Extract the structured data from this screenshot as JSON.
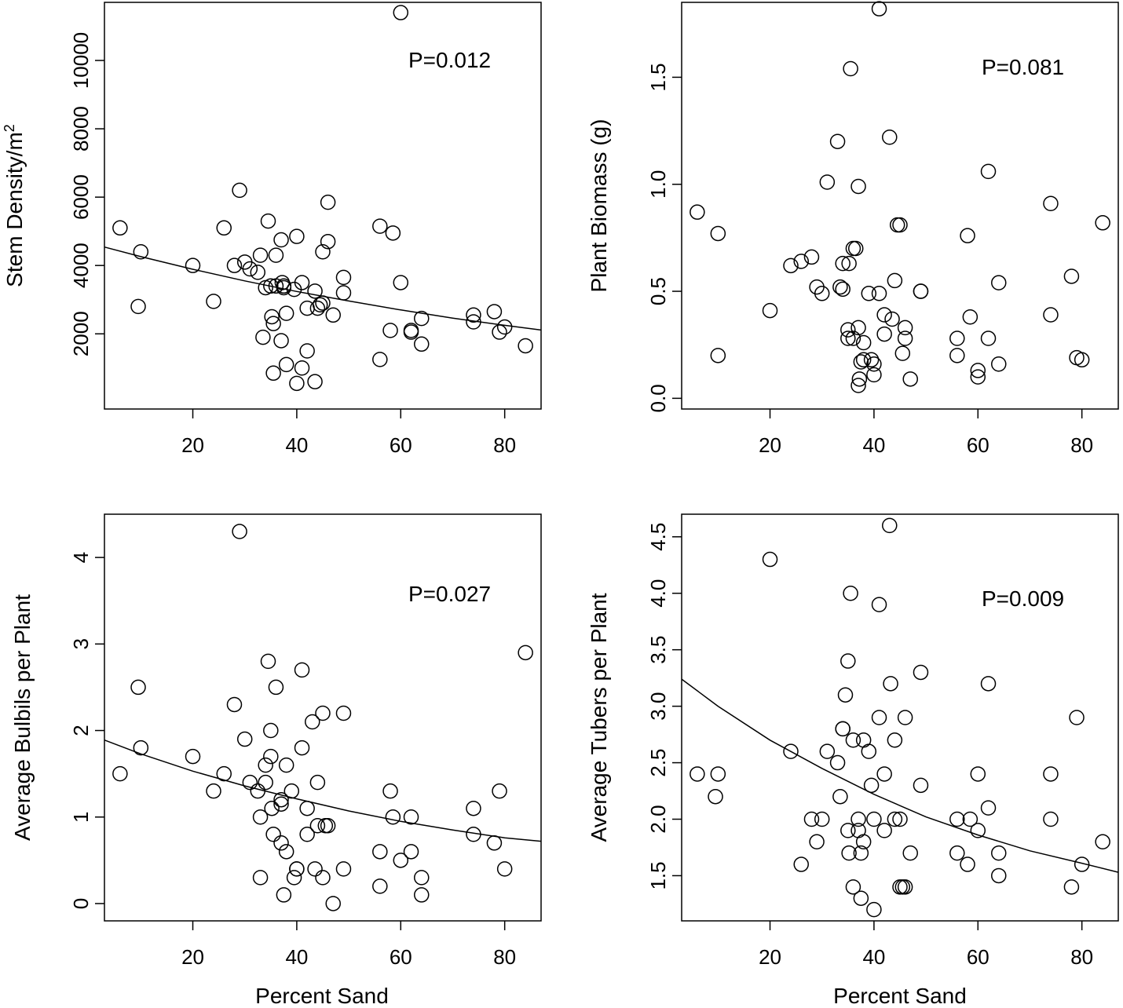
{
  "chart_data": [
    {
      "type": "scatter",
      "ylabel_main": "Stem Density/m",
      "ylabel_sup": "2",
      "xlabel": "",
      "annotation": "P=0.012",
      "xlim": [
        3,
        87
      ],
      "ylim": [
        -200,
        11700
      ],
      "xticks": [
        20,
        40,
        60,
        80
      ],
      "yticks": [
        2000,
        4000,
        6000,
        8000,
        10000
      ],
      "x": [
        6,
        10,
        9.5,
        20,
        24,
        26,
        28,
        29,
        30,
        31,
        32.5,
        33,
        34,
        34.5,
        35,
        35.2,
        35.5,
        36,
        36,
        37,
        37.2,
        37.5,
        37.5,
        37,
        38,
        38,
        39.5,
        40,
        41,
        42,
        42,
        43.5,
        44,
        44.5,
        45,
        45,
        46,
        46,
        47,
        49,
        49,
        56,
        56,
        58,
        58.5,
        60,
        60,
        62,
        62,
        64,
        64,
        74,
        74,
        78,
        79,
        80,
        84,
        33.5,
        35.5,
        40,
        41,
        43.5
      ],
      "y": [
        5100,
        4400,
        2800,
        4000,
        2950,
        5100,
        4000,
        6200,
        4100,
        3900,
        3800,
        4300,
        3350,
        5300,
        3400,
        2500,
        2300,
        4300,
        3400,
        4750,
        3500,
        3400,
        3350,
        1800,
        2600,
        1100,
        3300,
        4850,
        3500,
        2750,
        1500,
        3250,
        2750,
        2850,
        2900,
        4400,
        4700,
        5850,
        2550,
        3650,
        3200,
        5150,
        1250,
        2100,
        4950,
        11400,
        3500,
        2100,
        2050,
        2450,
        1700,
        2550,
        2350,
        2650,
        2050,
        2200,
        1650,
        1900,
        850,
        550,
        1000,
        600
      ],
      "fit_curve": {
        "x": [
          3,
          10,
          20,
          30,
          40,
          50,
          60,
          70,
          80,
          87
        ],
        "y": [
          4540,
          4260,
          3890,
          3550,
          3240,
          2960,
          2700,
          2460,
          2250,
          2110
        ]
      }
    },
    {
      "type": "scatter",
      "ylabel": "Plant Biomass (g)",
      "xlabel": "",
      "annotation": "P=0.081",
      "xlim": [
        3,
        87
      ],
      "ylim": [
        -0.05,
        1.85
      ],
      "xticks": [
        20,
        40,
        60,
        80
      ],
      "yticks": [
        "0.0",
        "0.5",
        "1.0",
        "1.5"
      ],
      "x": [
        6,
        10,
        10,
        20,
        24,
        26,
        28,
        29,
        30,
        31,
        33,
        33.5,
        34,
        34,
        35,
        35,
        35.2,
        36,
        36,
        36.5,
        37,
        37,
        37.5,
        37,
        37.2,
        38,
        38,
        39,
        39.5,
        40,
        40,
        41,
        41,
        42,
        42,
        43,
        43.5,
        44,
        44.5,
        45,
        45.5,
        46,
        46,
        47,
        49,
        49,
        56,
        56,
        58,
        58.5,
        60,
        60,
        62,
        62,
        64,
        64,
        74,
        74,
        78,
        79,
        80,
        84,
        35.5
      ],
      "y": [
        0.87,
        0.77,
        0.2,
        0.41,
        0.62,
        0.64,
        0.66,
        0.52,
        0.49,
        1.01,
        1.2,
        0.52,
        0.63,
        0.51,
        0.28,
        0.32,
        0.63,
        0.7,
        0.28,
        0.7,
        0.33,
        0.99,
        0.17,
        0.06,
        0.09,
        0.18,
        0.26,
        0.49,
        0.18,
        0.16,
        0.11,
        1.82,
        0.49,
        0.39,
        0.3,
        1.22,
        0.37,
        0.55,
        0.81,
        0.81,
        0.21,
        0.33,
        0.28,
        0.09,
        0.5,
        0.5,
        0.28,
        0.2,
        0.76,
        0.38,
        0.13,
        0.1,
        1.06,
        0.28,
        0.54,
        0.16,
        0.91,
        0.39,
        0.57,
        0.19,
        0.18,
        0.82,
        1.54
      ],
      "fit_curve": null
    },
    {
      "type": "scatter",
      "ylabel": "Average Bulbils per Plant",
      "xlabel": "Percent Sand",
      "annotation": "P=0.027",
      "xlim": [
        3,
        87
      ],
      "ylim": [
        -0.2,
        4.5
      ],
      "xticks": [
        20,
        40,
        60,
        80
      ],
      "yticks": [
        0,
        1,
        2,
        3,
        4
      ],
      "x": [
        6,
        9.5,
        10,
        20,
        24,
        26,
        28,
        29,
        30,
        31,
        32.5,
        33,
        33,
        34,
        34,
        34.5,
        35,
        35,
        35.2,
        35.5,
        36,
        37,
        37,
        37,
        37.5,
        38,
        38,
        39,
        39.5,
        40,
        40,
        41,
        41,
        42,
        42,
        43,
        43.5,
        44,
        44,
        45,
        45,
        45.5,
        46,
        47,
        49,
        49,
        56,
        56,
        58,
        58.5,
        60,
        62,
        62,
        64,
        64,
        74,
        74,
        78,
        79,
        80,
        84
      ],
      "y": [
        1.5,
        2.5,
        1.8,
        1.7,
        1.3,
        1.5,
        2.3,
        4.3,
        1.9,
        1.4,
        1.3,
        1.0,
        0.3,
        1.6,
        1.4,
        2.8,
        2.0,
        1.7,
        1.1,
        0.8,
        2.5,
        1.2,
        1.15,
        0.7,
        0.1,
        1.6,
        0.6,
        1.3,
        0.3,
        0.4,
        0.4,
        1.8,
        2.7,
        1.1,
        0.8,
        2.1,
        0.4,
        1.4,
        0.9,
        2.2,
        0.3,
        0.9,
        0.9,
        0.0,
        2.2,
        0.4,
        0.6,
        0.2,
        1.3,
        1.0,
        0.5,
        1.0,
        0.6,
        0.3,
        0.1,
        1.1,
        0.8,
        0.7,
        1.3,
        0.4,
        2.9
      ],
      "fit_curve": {
        "x": [
          3,
          10,
          20,
          30,
          40,
          50,
          60,
          70,
          80,
          87
        ],
        "y": [
          1.89,
          1.73,
          1.53,
          1.36,
          1.21,
          1.07,
          0.95,
          0.85,
          0.76,
          0.72
        ]
      }
    },
    {
      "type": "scatter",
      "ylabel": "Average Tubers per Plant",
      "xlabel": "Percent Sand",
      "annotation": "P=0.009",
      "xlim": [
        3,
        87
      ],
      "ylim": [
        1.1,
        4.7
      ],
      "xticks": [
        20,
        40,
        60,
        80
      ],
      "yticks": [
        "1.5",
        "2.0",
        "2.5",
        "3.0",
        "3.5",
        "4.0",
        "4.5"
      ],
      "x": [
        6,
        9.5,
        10,
        20,
        24,
        26,
        28,
        29,
        30,
        31,
        33,
        33.5,
        34,
        34,
        34.5,
        35,
        35,
        35.2,
        35.5,
        36,
        36,
        37,
        37,
        37.5,
        37.5,
        38,
        38,
        39,
        39.5,
        40,
        40,
        41,
        41,
        42,
        42,
        43,
        43.2,
        44,
        44,
        45,
        45,
        45.5,
        46,
        46,
        47,
        49,
        49,
        56,
        56,
        58,
        58.5,
        60,
        60,
        62,
        62,
        64,
        64,
        74,
        74,
        78,
        79,
        80,
        84
      ],
      "y": [
        2.4,
        2.2,
        2.4,
        4.3,
        2.6,
        1.6,
        2.0,
        1.8,
        2.0,
        2.6,
        2.5,
        2.2,
        2.8,
        2.8,
        3.1,
        3.4,
        1.9,
        1.7,
        4.0,
        1.4,
        2.7,
        2.0,
        1.9,
        1.3,
        1.7,
        2.7,
        1.8,
        2.6,
        2.3,
        2.0,
        1.2,
        3.9,
        2.9,
        2.4,
        1.9,
        4.6,
        3.2,
        2.7,
        2.0,
        2.0,
        1.4,
        1.4,
        2.9,
        1.4,
        1.7,
        3.3,
        2.3,
        2.0,
        1.7,
        1.6,
        2.0,
        1.9,
        2.4,
        3.2,
        2.1,
        1.7,
        1.5,
        2.4,
        2.0,
        1.4,
        2.9,
        1.6,
        1.8
      ],
      "fit_curve": {
        "x": [
          3,
          10,
          20,
          30,
          40,
          50,
          60,
          70,
          80,
          87
        ],
        "y": [
          3.24,
          3.0,
          2.7,
          2.45,
          2.22,
          2.02,
          1.86,
          1.72,
          1.61,
          1.53
        ]
      }
    }
  ]
}
